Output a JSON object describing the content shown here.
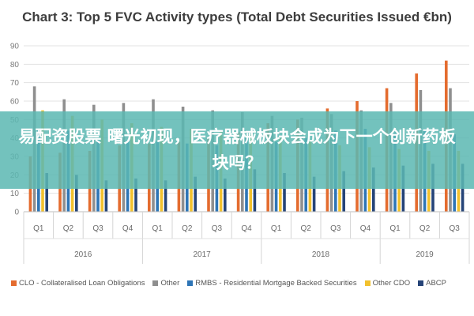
{
  "chart_data": {
    "type": "bar",
    "title": "Chart 3: Top 5 FVC Activity types (Total Debt Securities Issued €bn)",
    "ylim": [
      0,
      90
    ],
    "yticks": [
      0,
      10,
      20,
      30,
      40,
      50,
      60,
      70,
      80,
      90
    ],
    "grid": true,
    "legend_position": "bottom",
    "categories": [
      "Q1",
      "Q2",
      "Q3",
      "Q4",
      "Q1",
      "Q2",
      "Q3",
      "Q4",
      "Q1",
      "Q2",
      "Q3",
      "Q4",
      "Q1",
      "Q2",
      "Q3"
    ],
    "groups": [
      {
        "label": "2016",
        "count": 4
      },
      {
        "label": "2017",
        "count": 4
      },
      {
        "label": "2018",
        "count": 4
      },
      {
        "label": "2019",
        "count": 3
      }
    ],
    "series": [
      {
        "name": "CLO - Collateralised Loan Obligations",
        "color": "#e46c2f",
        "values": [
          30,
          32,
          33,
          36,
          37,
          38,
          40,
          43,
          48,
          50,
          56,
          60,
          67,
          75,
          82
        ]
      },
      {
        "name": "Other",
        "color": "#8f8f8f",
        "values": [
          68,
          61,
          58,
          59,
          61,
          57,
          55,
          54,
          52,
          51,
          53,
          55,
          59,
          66,
          67
        ]
      },
      {
        "name": "RMBS - Residential Mortgage Backed Securities",
        "color": "#2e75b6",
        "values": [
          45,
          44,
          40,
          39,
          38,
          37,
          36,
          40,
          38,
          40,
          44,
          45,
          43,
          45,
          42
        ]
      },
      {
        "name": "Other CDO",
        "color": "#f2c12e",
        "values": [
          55,
          52,
          50,
          48,
          46,
          45,
          44,
          42,
          40,
          38,
          36,
          35,
          34,
          33,
          33
        ]
      },
      {
        "name": "ABCP",
        "color": "#264478",
        "values": [
          21,
          20,
          17,
          18,
          17,
          19,
          18,
          23,
          21,
          19,
          22,
          24,
          25,
          26,
          26
        ]
      }
    ]
  },
  "overlay": {
    "text": "易配资股票 曙光初现，医疗器械板块会成为下一个创新药板块吗？"
  }
}
